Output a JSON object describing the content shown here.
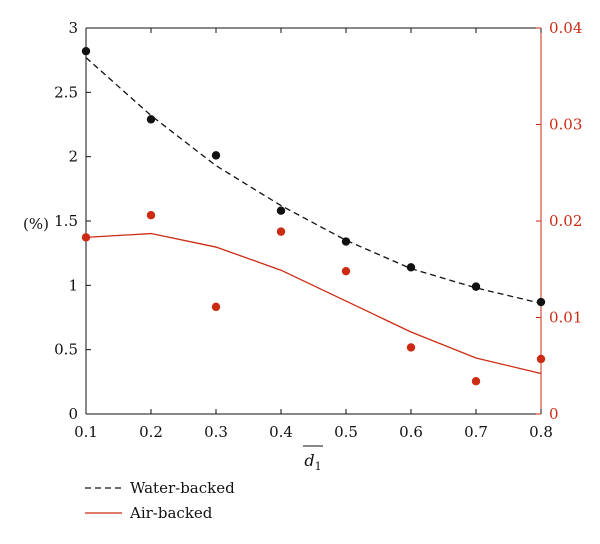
{
  "chart_data": {
    "type": "line",
    "x": [
      0.1,
      0.2,
      0.3,
      0.4,
      0.5,
      0.6,
      0.7,
      0.8
    ],
    "xlim": [
      0.1,
      0.8
    ],
    "xticks": [
      "0.1",
      "0.2",
      "0.3",
      "0.4",
      "0.5",
      "0.6",
      "0.7",
      "0.8"
    ],
    "xlabel": "d1",
    "xlabel_main": "d",
    "xlabel_sub": "1",
    "ylabel_left": "(%)",
    "ylim_left": [
      0,
      3
    ],
    "yticks_left": [
      "0",
      "0.5",
      "1",
      "1.5",
      "2",
      "2.5",
      "3"
    ],
    "ylim_right": [
      0,
      0.04
    ],
    "yticks_right": [
      "0",
      "0.01",
      "0.02",
      "0.03",
      "0.04"
    ],
    "grid": false,
    "legend_placement": "bottom-left",
    "series": [
      {
        "name": "Water-backed",
        "axis": "left",
        "color": "#111111",
        "style": "dashed",
        "line": [
          2.77,
          2.32,
          1.93,
          1.62,
          1.35,
          1.13,
          0.98,
          0.86
        ],
        "points": [
          2.82,
          2.29,
          2.01,
          1.58,
          1.34,
          1.14,
          0.99,
          0.87
        ]
      },
      {
        "name": "Air-backed",
        "axis": "right",
        "color": "#cc2a12",
        "style": "solid",
        "line": [
          0.0183,
          0.0187,
          0.0173,
          0.0149,
          0.0117,
          0.0085,
          0.0058,
          0.0042
        ],
        "points": [
          0.0183,
          0.0206,
          0.0111,
          0.0189,
          0.0148,
          0.0069,
          0.0034,
          0.0057
        ]
      }
    ]
  }
}
